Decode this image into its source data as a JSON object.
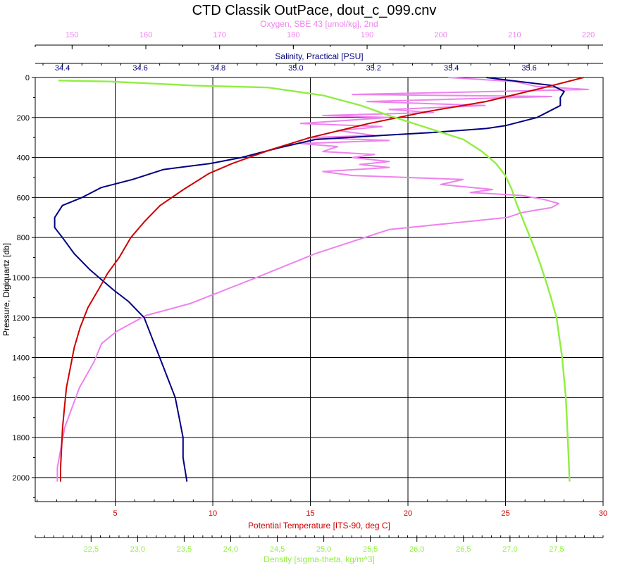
{
  "chart_data": {
    "type": "line",
    "title": "CTD Classik OutPace, dout_c_099.cnv",
    "y_axis": {
      "label": "Pressure, Digiquartz [db]",
      "range": [
        2120,
        0
      ],
      "ticks": [
        0,
        200,
        400,
        600,
        800,
        1000,
        1200,
        1400,
        1600,
        1800,
        2000
      ],
      "color": "#000000",
      "grid": true
    },
    "x_axes": [
      {
        "id": "oxygen",
        "label": "Oxygen, SBE 43 [umol/kg], 2nd",
        "position": "top-outer",
        "range": [
          145,
          222
        ],
        "ticks": [
          150,
          160,
          170,
          180,
          190,
          200,
          210,
          220
        ],
        "color": "#ee82ee",
        "grid": false
      },
      {
        "id": "salinity",
        "label": "Salinity, Practical [PSU]",
        "position": "top-inner",
        "range": [
          34.33,
          35.79
        ],
        "ticks": [
          "34.4",
          "34.6",
          "34.8",
          "35.0",
          "35.2",
          "35.4",
          "35.6"
        ],
        "color": "#000080",
        "grid": false
      },
      {
        "id": "temperature",
        "label": "Potential Temperature [ITS-90, deg C]",
        "position": "bottom-inner",
        "range": [
          0.9,
          30.0
        ],
        "ticks": [
          5,
          10,
          15,
          20,
          25,
          30
        ],
        "color": "#cc0000",
        "grid": true
      },
      {
        "id": "density",
        "label": "Density [sigma-theta, kg/m^3]",
        "position": "bottom-outer",
        "range": [
          21.9,
          28.0
        ],
        "ticks": [
          "22,5",
          "23,0",
          "23,5",
          "24,0",
          "24,5",
          "25,0",
          "25,5",
          "26,0",
          "26,5",
          "27,0",
          "27,5"
        ],
        "color": "#90ee40",
        "grid": false
      }
    ],
    "series": [
      {
        "axis": "oxygen",
        "color": "#ee82ee",
        "points": [
          [
            201,
            0
          ],
          [
            210,
            20
          ],
          [
            213,
            45
          ],
          [
            220,
            60
          ],
          [
            188,
            85
          ],
          [
            215,
            95
          ],
          [
            190,
            120
          ],
          [
            206,
            140
          ],
          [
            193,
            160
          ],
          [
            199,
            175
          ],
          [
            184,
            190
          ],
          [
            193,
            200
          ],
          [
            181,
            230
          ],
          [
            192,
            245
          ],
          [
            186,
            265
          ],
          [
            191,
            290
          ],
          [
            182,
            300
          ],
          [
            193,
            315
          ],
          [
            181,
            330
          ],
          [
            186,
            345
          ],
          [
            184,
            370
          ],
          [
            191,
            385
          ],
          [
            188,
            400
          ],
          [
            193,
            420
          ],
          [
            189,
            435
          ],
          [
            193,
            450
          ],
          [
            184,
            470
          ],
          [
            188,
            490
          ],
          [
            203,
            510
          ],
          [
            200,
            535
          ],
          [
            207,
            560
          ],
          [
            204,
            575
          ],
          [
            211,
            590
          ],
          [
            214,
            610
          ],
          [
            216,
            630
          ],
          [
            215,
            650
          ],
          [
            211,
            675
          ],
          [
            209,
            700
          ],
          [
            193,
            760
          ],
          [
            183,
            880
          ],
          [
            175,
            1000
          ],
          [
            166,
            1130
          ],
          [
            160,
            1190
          ],
          [
            156,
            1270
          ],
          [
            154,
            1330
          ],
          [
            153,
            1420
          ],
          [
            151,
            1550
          ],
          [
            150,
            1650
          ],
          [
            149,
            1750
          ],
          [
            148.5,
            1850
          ],
          [
            148,
            1950
          ],
          [
            148,
            2020
          ]
        ]
      },
      {
        "axis": "salinity",
        "color": "#000080",
        "points": [
          [
            35.49,
            0
          ],
          [
            35.53,
            10
          ],
          [
            35.66,
            40
          ],
          [
            35.69,
            70
          ],
          [
            35.68,
            100
          ],
          [
            35.68,
            140
          ],
          [
            35.62,
            200
          ],
          [
            35.54,
            240
          ],
          [
            35.49,
            255
          ],
          [
            35.35,
            275
          ],
          [
            35.22,
            290
          ],
          [
            35.05,
            310
          ],
          [
            34.96,
            350
          ],
          [
            34.9,
            380
          ],
          [
            34.86,
            400
          ],
          [
            34.78,
            430
          ],
          [
            34.66,
            460
          ],
          [
            34.58,
            510
          ],
          [
            34.5,
            550
          ],
          [
            34.45,
            600
          ],
          [
            34.4,
            640
          ],
          [
            34.38,
            700
          ],
          [
            34.38,
            750
          ],
          [
            34.4,
            800
          ],
          [
            34.43,
            880
          ],
          [
            34.47,
            960
          ],
          [
            34.53,
            1060
          ],
          [
            34.57,
            1120
          ],
          [
            34.59,
            1160
          ],
          [
            34.61,
            1200
          ],
          [
            34.63,
            1300
          ],
          [
            34.65,
            1400
          ],
          [
            34.67,
            1500
          ],
          [
            34.69,
            1600
          ],
          [
            34.7,
            1700
          ],
          [
            34.71,
            1800
          ],
          [
            34.71,
            1900
          ],
          [
            34.72,
            2020
          ]
        ]
      },
      {
        "axis": "temperature",
        "color": "#cc0000",
        "points": [
          [
            29.0,
            0
          ],
          [
            27.0,
            50
          ],
          [
            24.0,
            120
          ],
          [
            21.0,
            170
          ],
          [
            18.0,
            230
          ],
          [
            15.0,
            300
          ],
          [
            13.0,
            360
          ],
          [
            11.0,
            430
          ],
          [
            9.8,
            480
          ],
          [
            8.5,
            560
          ],
          [
            7.3,
            640
          ],
          [
            6.5,
            720
          ],
          [
            5.8,
            800
          ],
          [
            5.2,
            900
          ],
          [
            4.6,
            980
          ],
          [
            4.2,
            1050
          ],
          [
            3.6,
            1150
          ],
          [
            3.2,
            1250
          ],
          [
            2.9,
            1350
          ],
          [
            2.7,
            1450
          ],
          [
            2.5,
            1550
          ],
          [
            2.4,
            1650
          ],
          [
            2.3,
            1750
          ],
          [
            2.25,
            1850
          ],
          [
            2.2,
            1950
          ],
          [
            2.2,
            2020
          ]
        ]
      },
      {
        "axis": "density",
        "color": "#90ee40",
        "points": [
          [
            22.15,
            15
          ],
          [
            22.7,
            20
          ],
          [
            23.6,
            40
          ],
          [
            24.4,
            50
          ],
          [
            25.0,
            90
          ],
          [
            25.4,
            140
          ],
          [
            25.7,
            190
          ],
          [
            26.1,
            250
          ],
          [
            26.5,
            310
          ],
          [
            26.7,
            370
          ],
          [
            26.85,
            430
          ],
          [
            26.95,
            490
          ],
          [
            27.02,
            560
          ],
          [
            27.07,
            630
          ],
          [
            27.13,
            700
          ],
          [
            27.2,
            780
          ],
          [
            27.27,
            860
          ],
          [
            27.33,
            940
          ],
          [
            27.38,
            1010
          ],
          [
            27.44,
            1100
          ],
          [
            27.5,
            1200
          ],
          [
            27.53,
            1300
          ],
          [
            27.56,
            1400
          ],
          [
            27.58,
            1500
          ],
          [
            27.6,
            1600
          ],
          [
            27.61,
            1700
          ],
          [
            27.62,
            1800
          ],
          [
            27.63,
            1900
          ],
          [
            27.64,
            2020
          ]
        ]
      }
    ]
  }
}
